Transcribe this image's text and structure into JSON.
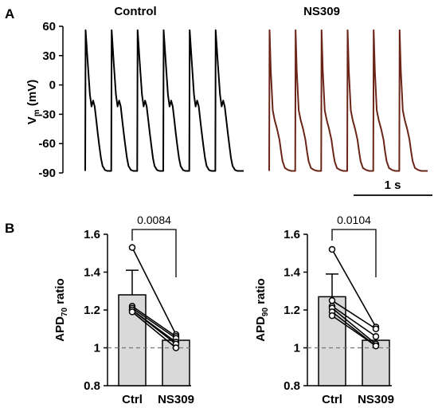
{
  "panels": {
    "a": {
      "letter": "A",
      "control_title": "Control",
      "drug_title": "NS309",
      "ylabel": "V",
      "ylabel_sub": "m",
      "ylabel_unit": " (mV)",
      "yticks": [
        "60",
        "30",
        "0",
        "-30",
        "-60",
        "-90"
      ],
      "scale_bar_label": "1 s",
      "control_color": "#000000",
      "drug_color": "#6b2418"
    },
    "b": {
      "letter": "B"
    }
  },
  "chart_data": [
    {
      "type": "line",
      "title": "Control",
      "ylabel": "Vm (mV)",
      "ylim": [
        -90,
        60
      ],
      "units": "mV",
      "beats": 6,
      "cycle_length_s": 0.33,
      "series": [
        {
          "points_t_s": [
            0,
            0.005,
            0.03,
            0.06,
            0.08,
            0.1,
            0.12,
            0.14,
            0.16,
            0.18,
            0.2,
            0.22,
            0.25,
            0.28,
            0.31,
            0.33
          ],
          "points_mV": [
            -88,
            56,
            25,
            -10,
            -22,
            -16,
            -22,
            -36,
            -50,
            -63,
            -75,
            -83,
            -87,
            -88,
            -88,
            -88
          ]
        }
      ]
    },
    {
      "type": "line",
      "title": "NS309",
      "ylabel": "Vm (mV)",
      "ylim": [
        -90,
        60
      ],
      "units": "mV",
      "beats": 6,
      "cycle_length_s": 0.33,
      "series": [
        {
          "points_t_s": [
            0,
            0.005,
            0.02,
            0.045,
            0.07,
            0.1,
            0.13,
            0.15,
            0.17,
            0.2,
            0.24,
            0.28,
            0.33
          ],
          "points_mV": [
            -88,
            56,
            15,
            -26,
            -36,
            -45,
            -56,
            -68,
            -78,
            -85,
            -87,
            -88,
            -88
          ]
        }
      ]
    },
    {
      "type": "bar",
      "categories": [
        "Ctrl",
        "NS309"
      ],
      "values": [
        1.28,
        1.04
      ],
      "error": [
        0.13,
        0
      ],
      "ylabel": "APD",
      "ylabel_sub": "70",
      "ylabel_suffix": " ratio",
      "ylim": [
        0.8,
        1.6
      ],
      "yticks": [
        "0.8",
        "1",
        "1.2",
        "1.4",
        "1.6"
      ],
      "reference_line": 1.0,
      "p_value": "0.0084",
      "paired": {
        "ctrl": [
          1.53,
          1.22,
          1.21,
          1.2,
          1.2,
          1.19
        ],
        "ns309": [
          1.07,
          1.06,
          1.05,
          1.03,
          1.02,
          1.0
        ]
      }
    },
    {
      "type": "bar",
      "categories": [
        "Ctrl",
        "NS309"
      ],
      "values": [
        1.27,
        1.04
      ],
      "error": [
        0.12,
        0
      ],
      "ylabel": "APD",
      "ylabel_sub": "90",
      "ylabel_suffix": " ratio",
      "ylim": [
        0.8,
        1.6
      ],
      "yticks": [
        "0.8",
        "1",
        "1.2",
        "1.4",
        "1.6"
      ],
      "reference_line": 1.0,
      "p_value": "0.0104",
      "paired": {
        "ctrl": [
          1.52,
          1.25,
          1.22,
          1.21,
          1.19,
          1.17
        ],
        "ns309": [
          1.11,
          1.1,
          1.06,
          1.02,
          1.01,
          1.01
        ]
      }
    }
  ]
}
